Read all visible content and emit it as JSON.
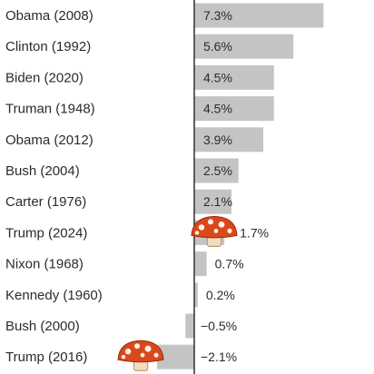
{
  "chart_data": {
    "type": "bar",
    "orientation": "horizontal",
    "categories": [
      "Obama (2008)",
      "Clinton (1992)",
      "Biden (2020)",
      "Truman (1948)",
      "Obama (2012)",
      "Bush (2004)",
      "Carter (1976)",
      "Trump (2024)",
      "Nixon (1968)",
      "Kennedy (1960)",
      "Bush (2000)",
      "Trump (2016)"
    ],
    "values": [
      7.3,
      5.6,
      4.5,
      4.5,
      3.9,
      2.5,
      2.1,
      1.7,
      0.7,
      0.2,
      -0.5,
      -2.1
    ],
    "value_labels": [
      "7.3%",
      "5.6%",
      "4.5%",
      "4.5%",
      "3.9%",
      "2.5%",
      "2.1%",
      "1.7%",
      "0.7%",
      "0.2%",
      "−0.5%",
      "−2.1%"
    ],
    "value_unit": "%",
    "xlim": [
      -2.4,
      8.0
    ],
    "title": "",
    "xlabel": "",
    "ylabel": "",
    "grid": false,
    "bar_color": "#c4c4c4",
    "axis_color": "#3a3a3a",
    "marker_icon": "mushroom-icon",
    "marked_categories": [
      "Trump (2024)",
      "Trump (2016)"
    ]
  }
}
